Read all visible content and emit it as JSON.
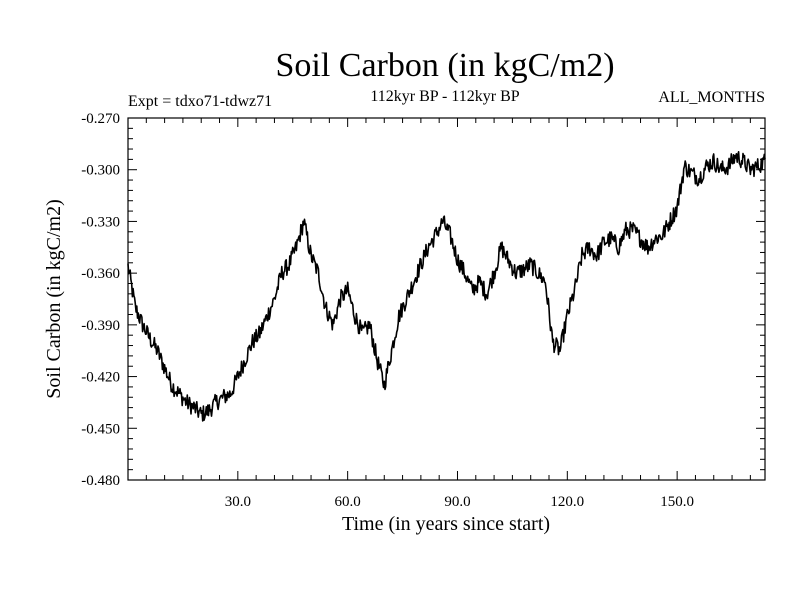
{
  "chart_data": {
    "type": "line",
    "title": "Soil Carbon (in kgC/m2)",
    "subtitle": "112kyr BP - 112kyr BP",
    "experiment": "Expt = tdxo71-tdwz71",
    "months_label": "ALL_MONTHS",
    "xlabel": "Time (in years since start)",
    "ylabel": "Soil Carbon (in kgC/m2)",
    "xlim": [
      0,
      174
    ],
    "ylim": [
      -0.48,
      -0.27
    ],
    "xticks": [
      30,
      60,
      90,
      120,
      150
    ],
    "xtick_labels": [
      "30.0",
      "60.0",
      "90.0",
      "120.0",
      "150.0"
    ],
    "yticks": [
      -0.27,
      -0.3,
      -0.33,
      -0.36,
      -0.39,
      -0.42,
      -0.45,
      -0.48
    ],
    "ytick_labels": [
      "-0.270",
      "-0.300",
      "-0.330",
      "-0.360",
      "-0.390",
      "-0.420",
      "-0.450",
      "-0.480"
    ],
    "line_color": "#000000",
    "series": [
      {
        "name": "Soil Carbon",
        "x": [
          0,
          2,
          4,
          6,
          8,
          10,
          12,
          14,
          16,
          18,
          20,
          22,
          24,
          26,
          28,
          30,
          32,
          34,
          36,
          38,
          40,
          42,
          44,
          46,
          48,
          50,
          52,
          54,
          56,
          58,
          60,
          62,
          64,
          66,
          68,
          70,
          72,
          74,
          76,
          78,
          80,
          82,
          84,
          86,
          88,
          90,
          92,
          94,
          96,
          98,
          100,
          102,
          104,
          106,
          108,
          110,
          112,
          114,
          116,
          118,
          120,
          122,
          124,
          126,
          128,
          130,
          132,
          134,
          136,
          138,
          140,
          142,
          144,
          146,
          148,
          150,
          152,
          154,
          156,
          158,
          160,
          162,
          164,
          166,
          168,
          170,
          172,
          174
        ],
        "values": [
          -0.356,
          -0.38,
          -0.39,
          -0.398,
          -0.405,
          -0.415,
          -0.425,
          -0.43,
          -0.435,
          -0.438,
          -0.442,
          -0.44,
          -0.435,
          -0.432,
          -0.43,
          -0.42,
          -0.41,
          -0.4,
          -0.395,
          -0.385,
          -0.375,
          -0.36,
          -0.355,
          -0.345,
          -0.33,
          -0.35,
          -0.36,
          -0.38,
          -0.39,
          -0.375,
          -0.37,
          -0.385,
          -0.395,
          -0.39,
          -0.41,
          -0.425,
          -0.405,
          -0.385,
          -0.375,
          -0.365,
          -0.355,
          -0.345,
          -0.338,
          -0.33,
          -0.338,
          -0.352,
          -0.36,
          -0.37,
          -0.365,
          -0.372,
          -0.36,
          -0.345,
          -0.353,
          -0.36,
          -0.358,
          -0.355,
          -0.36,
          -0.365,
          -0.4,
          -0.405,
          -0.385,
          -0.37,
          -0.35,
          -0.345,
          -0.35,
          -0.342,
          -0.34,
          -0.345,
          -0.335,
          -0.335,
          -0.34,
          -0.345,
          -0.34,
          -0.338,
          -0.33,
          -0.322,
          -0.298,
          -0.302,
          -0.305,
          -0.298,
          -0.295,
          -0.3,
          -0.298,
          -0.292,
          -0.295,
          -0.3,
          -0.298,
          -0.295
        ],
        "noise_amplitude": 0.005
      }
    ]
  }
}
